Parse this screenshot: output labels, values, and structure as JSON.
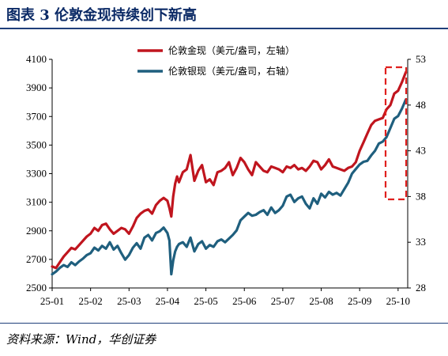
{
  "figure": {
    "title": "图表 3   伦敦金现持续创下新高",
    "source": "资料来源：Wind，华创证券"
  },
  "colors": {
    "gold": "#c0151e",
    "silver": "#1f5f7e",
    "highlight": "#e0201e",
    "title": "#0b2a66",
    "rule": "#1f3f7a"
  },
  "chart_data": {
    "type": "line",
    "title": "",
    "xlabel": "",
    "ylabel": "",
    "y_left_lim": [
      2500,
      4100
    ],
    "y_right_lim": [
      28,
      53
    ],
    "y_left_ticks": [
      2500,
      2700,
      2900,
      3100,
      3300,
      3500,
      3700,
      3900,
      4100
    ],
    "y_right_ticks": [
      28,
      33,
      38,
      43,
      48,
      53
    ],
    "x_tick_labels": [
      "25-01",
      "25-02",
      "25-03",
      "25-04",
      "25-05",
      "25-06",
      "25-07",
      "25-08",
      "25-09",
      "25-10"
    ],
    "x_tick_months": [
      1,
      2,
      3,
      4,
      5,
      6,
      7,
      8,
      9,
      10
    ],
    "x_range_months": [
      1,
      10.25
    ],
    "legend": {
      "position": "top-center"
    },
    "grid": false,
    "series": [
      {
        "name": "伦敦金现（美元/盎司，左轴）",
        "axis": "left",
        "x": [
          1.0,
          1.1,
          1.2,
          1.3,
          1.4,
          1.5,
          1.6,
          1.7,
          1.8,
          1.9,
          2.0,
          2.1,
          2.2,
          2.3,
          2.4,
          2.5,
          2.6,
          2.7,
          2.8,
          2.9,
          3.0,
          3.1,
          3.2,
          3.3,
          3.4,
          3.5,
          3.6,
          3.7,
          3.8,
          3.9,
          4.0,
          4.05,
          4.1,
          4.15,
          4.2,
          4.25,
          4.3,
          4.4,
          4.5,
          4.6,
          4.7,
          4.8,
          4.9,
          5.0,
          5.1,
          5.2,
          5.3,
          5.4,
          5.5,
          5.6,
          5.7,
          5.8,
          5.9,
          6.0,
          6.1,
          6.2,
          6.3,
          6.4,
          6.5,
          6.6,
          6.7,
          6.8,
          6.9,
          7.0,
          7.1,
          7.2,
          7.3,
          7.4,
          7.5,
          7.6,
          7.7,
          7.8,
          7.9,
          8.0,
          8.1,
          8.2,
          8.3,
          8.4,
          8.5,
          8.6,
          8.7,
          8.8,
          8.9,
          9.0,
          9.1,
          9.2,
          9.3,
          9.4,
          9.5,
          9.6,
          9.7,
          9.8,
          9.9,
          10.0,
          10.1,
          10.2
        ],
        "values": [
          2650,
          2640,
          2680,
          2720,
          2750,
          2780,
          2770,
          2800,
          2830,
          2860,
          2880,
          2920,
          2900,
          2940,
          2950,
          2910,
          2880,
          2900,
          2920,
          2910,
          2880,
          2930,
          2990,
          3020,
          3040,
          3050,
          3020,
          3080,
          3110,
          3130,
          3110,
          3060,
          3000,
          3140,
          3230,
          3280,
          3240,
          3310,
          3330,
          3430,
          3250,
          3320,
          3360,
          3240,
          3260,
          3220,
          3310,
          3320,
          3340,
          3380,
          3290,
          3340,
          3410,
          3380,
          3330,
          3290,
          3380,
          3350,
          3320,
          3310,
          3350,
          3340,
          3330,
          3310,
          3350,
          3340,
          3360,
          3330,
          3340,
          3320,
          3350,
          3390,
          3380,
          3330,
          3360,
          3400,
          3350,
          3340,
          3330,
          3320,
          3340,
          3350,
          3380,
          3460,
          3520,
          3580,
          3640,
          3670,
          3680,
          3690,
          3750,
          3780,
          3860,
          3880,
          3940,
          4010
        ]
      },
      {
        "name": "伦敦银现（美元/盎司，右轴）",
        "axis": "right",
        "x": [
          1.0,
          1.1,
          1.2,
          1.3,
          1.4,
          1.5,
          1.6,
          1.7,
          1.8,
          1.9,
          2.0,
          2.1,
          2.2,
          2.3,
          2.4,
          2.5,
          2.6,
          2.7,
          2.8,
          2.9,
          3.0,
          3.1,
          3.2,
          3.3,
          3.4,
          3.5,
          3.6,
          3.7,
          3.8,
          3.9,
          4.0,
          4.05,
          4.1,
          4.15,
          4.2,
          4.25,
          4.3,
          4.4,
          4.5,
          4.6,
          4.7,
          4.8,
          4.9,
          5.0,
          5.1,
          5.2,
          5.3,
          5.4,
          5.5,
          5.6,
          5.7,
          5.8,
          5.9,
          6.0,
          6.1,
          6.2,
          6.3,
          6.4,
          6.5,
          6.6,
          6.7,
          6.8,
          6.9,
          7.0,
          7.1,
          7.2,
          7.3,
          7.4,
          7.5,
          7.6,
          7.7,
          7.8,
          7.9,
          8.0,
          8.1,
          8.2,
          8.3,
          8.4,
          8.5,
          8.6,
          8.7,
          8.8,
          8.9,
          9.0,
          9.1,
          9.2,
          9.3,
          9.4,
          9.5,
          9.6,
          9.7,
          9.8,
          9.9,
          10.0,
          10.1,
          10.2
        ],
        "values": [
          29.5,
          29.8,
          30.2,
          30.5,
          30.3,
          30.8,
          30.5,
          30.9,
          31.2,
          31.6,
          31.8,
          32.4,
          32.1,
          32.6,
          32.3,
          33.0,
          32.2,
          32.6,
          31.8,
          31.1,
          31.6,
          32.4,
          32.9,
          32.3,
          33.5,
          33.8,
          33.2,
          34.0,
          34.2,
          34.6,
          34.0,
          33.2,
          29.5,
          31.0,
          32.0,
          32.5,
          32.8,
          33.0,
          32.5,
          33.5,
          32.0,
          32.8,
          33.1,
          32.3,
          32.7,
          32.5,
          33.1,
          33.3,
          33.0,
          33.4,
          33.8,
          34.3,
          35.4,
          35.8,
          36.2,
          35.9,
          36.0,
          36.3,
          36.5,
          36.0,
          36.8,
          36.2,
          36.5,
          37.0,
          38.0,
          38.2,
          37.4,
          37.8,
          38.0,
          37.2,
          36.7,
          37.8,
          37.2,
          38.3,
          37.9,
          38.5,
          38.2,
          38.4,
          38.1,
          38.8,
          39.5,
          40.5,
          41.0,
          41.5,
          41.8,
          41.9,
          42.5,
          43.0,
          43.8,
          44.0,
          44.5,
          45.5,
          46.5,
          46.8,
          47.6,
          48.6
        ]
      }
    ]
  }
}
